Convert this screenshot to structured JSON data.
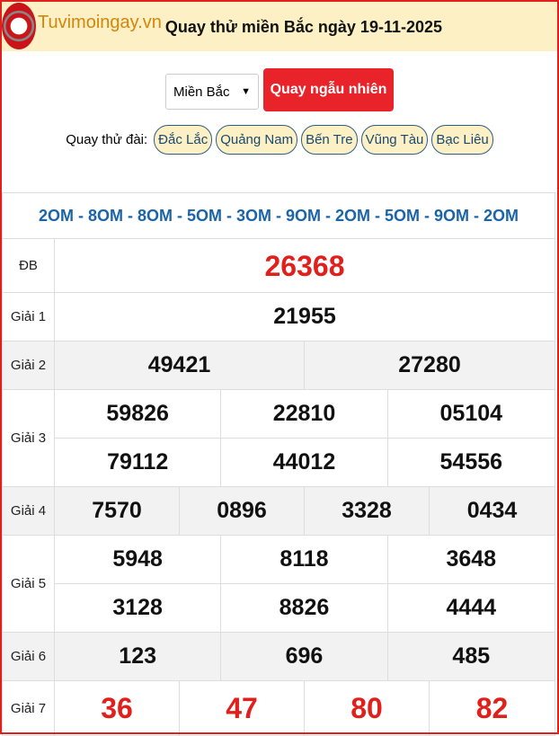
{
  "header": {
    "brand": "Tuvimoingay.vn",
    "logo_text": "TVMN",
    "title": "Quay thử miền Bắc ngày 19-11-2025"
  },
  "controls": {
    "region_select": "Miền Bắc",
    "spin_button": "Quay ngẫu nhiên"
  },
  "stations": {
    "label": "Quay thử đài:",
    "items": [
      "Đắc Lắc",
      "Quảng Nam",
      "Bến Tre",
      "Vũng Tàu",
      "Bạc Liêu"
    ]
  },
  "results": {
    "codes": "2OM - 8OM - 8OM - 5OM - 3OM - 9OM - 2OM - 5OM - 9OM - 2OM",
    "db": {
      "label": "ĐB",
      "values": [
        "26368"
      ]
    },
    "g1": {
      "label": "Giải 1",
      "values": [
        "21955"
      ]
    },
    "g2": {
      "label": "Giải 2",
      "values": [
        "49421",
        "27280"
      ]
    },
    "g3": {
      "label": "Giải 3",
      "values": [
        "59826",
        "22810",
        "05104",
        "79112",
        "44012",
        "54556"
      ]
    },
    "g4": {
      "label": "Giải 4",
      "values": [
        "7570",
        "0896",
        "3328",
        "0434"
      ]
    },
    "g5": {
      "label": "Giải 5",
      "values": [
        "5948",
        "8118",
        "3648",
        "3128",
        "8826",
        "4444"
      ]
    },
    "g6": {
      "label": "Giải 6",
      "values": [
        "123",
        "696",
        "485"
      ]
    },
    "g7": {
      "label": "Giải 7",
      "values": [
        "36",
        "47",
        "80",
        "82"
      ]
    }
  },
  "colors": {
    "accent": "#e8232a",
    "header_bg": "#fcf0c4",
    "codes": "#1b64a8"
  }
}
